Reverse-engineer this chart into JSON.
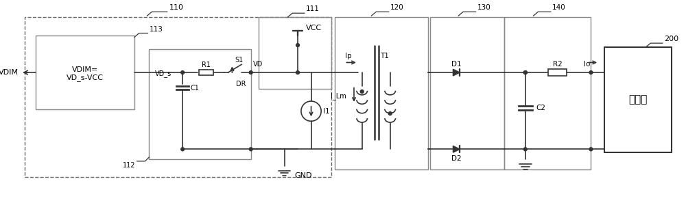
{
  "bg_color": "#ffffff",
  "lc": "#333333",
  "lw": 1.2,
  "fig_width": 10.0,
  "fig_height": 3.0,
  "dpi": 100,
  "labels": {
    "110": "110",
    "111": "111",
    "112": "112",
    "113": "113",
    "120": "120",
    "130": "130",
    "140": "140",
    "200": "200",
    "VDIM": "VDIM",
    "VDIM_eq": "VDIM=\nVD_s-VCC",
    "VCC": "VCC",
    "VD": "VD",
    "VD_s": "VD_s",
    "R1": "R1",
    "S1": "S1",
    "C1": "C1",
    "DR": "DR",
    "I1": "I1",
    "GND": "GND",
    "Ip": "Ip",
    "ILm": "I_Lm",
    "T1": "T1",
    "D1": "D1",
    "D2": "D2",
    "R2": "R2",
    "C2": "C2",
    "Io": "Io",
    "dimmer": "调光器"
  }
}
